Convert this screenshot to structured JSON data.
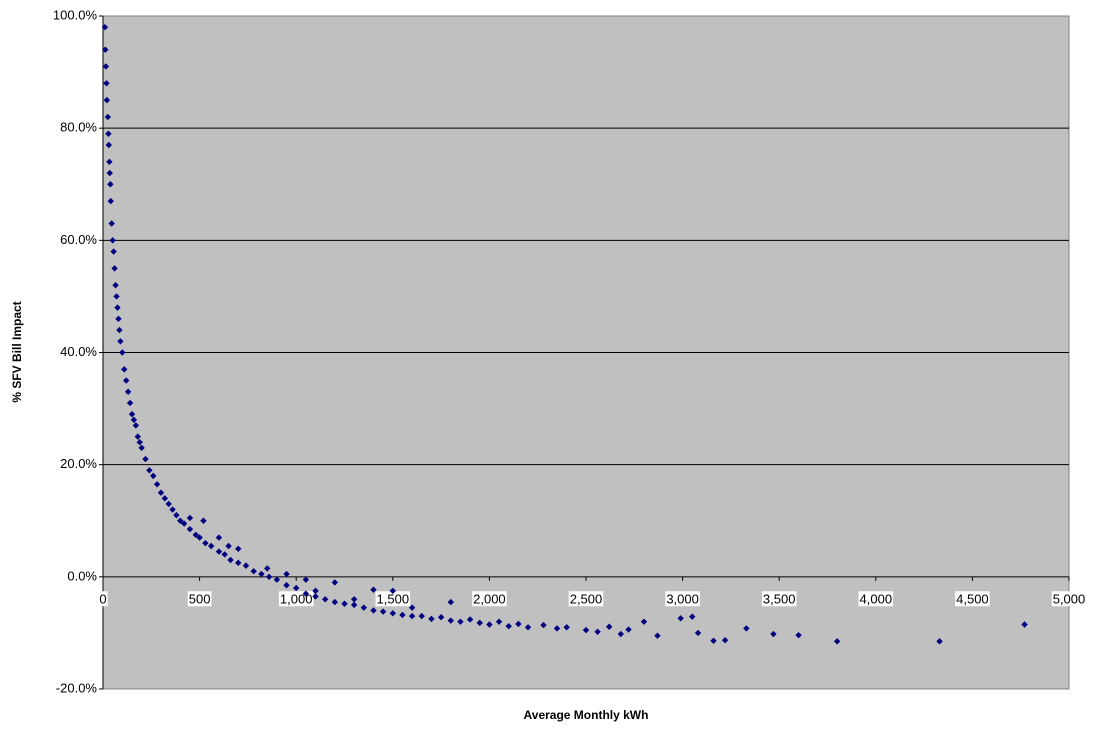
{
  "chart_data": {
    "type": "scatter",
    "x_label": "Average Monthly kWh",
    "y_label": "% SFV Bill Impact",
    "color": "#000080",
    "grid": true,
    "xlim": [
      0,
      5000
    ],
    "xticks": [
      0,
      500,
      {
        "value": 1000,
        "label": "1,000"
      },
      {
        "value": 1500,
        "label": "1,500"
      },
      {
        "value": 2000,
        "label": "2,000"
      },
      {
        "value": 2500,
        "label": "2,500"
      },
      {
        "value": 3000,
        "label": "3,000"
      },
      {
        "value": 3500,
        "label": "3,500"
      },
      {
        "value": 4000,
        "label": "4,000"
      },
      {
        "value": 4500,
        "label": "4,500"
      },
      {
        "value": 5000,
        "label": "5,000"
      }
    ],
    "ylim": [
      -20,
      100
    ],
    "yticks": [
      {
        "value": -20,
        "label": "-20.0%"
      },
      {
        "value": 0,
        "label": "0.0%"
      },
      {
        "value": 20,
        "label": "20.0%"
      },
      {
        "value": 40,
        "label": "40.0%"
      },
      {
        "value": 60,
        "label": "60.0%"
      },
      {
        "value": 80,
        "label": "80.0%"
      },
      {
        "value": 100,
        "label": "100.0%"
      }
    ],
    "x": [
      10,
      12,
      15,
      18,
      20,
      25,
      28,
      30,
      33,
      35,
      38,
      40,
      45,
      50,
      55,
      60,
      65,
      70,
      75,
      80,
      85,
      90,
      100,
      110,
      120,
      130,
      140,
      150,
      160,
      170,
      180,
      190,
      200,
      220,
      240,
      260,
      280,
      300,
      320,
      340,
      360,
      380,
      400,
      420,
      450,
      480,
      500,
      530,
      560,
      600,
      630,
      660,
      700,
      740,
      780,
      820,
      860,
      900,
      950,
      1000,
      1050,
      1100,
      1150,
      1200,
      1250,
      1300,
      1350,
      1400,
      1450,
      1500,
      1550,
      1600,
      1650,
      1700,
      1750,
      1800,
      1850,
      1900,
      1950,
      2000,
      2050,
      2100,
      2150,
      2200,
      2280,
      2350,
      2400,
      2500,
      2560,
      2620,
      2680,
      2720,
      2800,
      2870,
      2990,
      3050,
      3080,
      3160,
      3220,
      3330,
      3470,
      3600,
      3800,
      4330,
      4770,
      520,
      600,
      700,
      1200,
      1500,
      1800,
      1050,
      1400,
      450,
      650,
      850,
      950,
      1100,
      1300,
      1600
    ],
    "values": [
      98,
      94,
      91,
      88,
      85,
      82,
      79,
      77,
      74,
      72,
      70,
      67,
      63,
      60,
      58,
      55,
      52,
      50,
      48,
      46,
      44,
      42,
      40,
      37,
      35,
      33,
      31,
      29,
      28,
      27,
      25,
      24,
      23,
      21,
      19,
      18,
      16.5,
      15,
      14,
      13,
      12,
      11,
      10,
      9.5,
      8.5,
      7.5,
      7,
      6,
      5.5,
      4.5,
      4,
      3,
      2.5,
      2,
      1,
      0.5,
      0,
      -0.5,
      -1.5,
      -2,
      -3,
      -3.5,
      -4,
      -4.5,
      -4.8,
      -5,
      -5.5,
      -6,
      -6.2,
      -6.5,
      -6.8,
      -7,
      -7,
      -7.5,
      -7.2,
      -7.8,
      -8,
      -7.6,
      -8.2,
      -8.5,
      -8,
      -8.8,
      -8.4,
      -9,
      -8.6,
      -9.2,
      -9,
      -9.5,
      -9.8,
      -8.9,
      -10.2,
      -9.4,
      -8,
      -10.5,
      -7.4,
      -7.1,
      -10,
      -11.4,
      -11.3,
      -9.2,
      -10.2,
      -10.4,
      -11.5,
      -11.5,
      -8.5,
      10,
      7,
      5,
      -1,
      -2.5,
      -4.5,
      -0.5,
      -2.3,
      10.5,
      5.5,
      1.5,
      0.5,
      -2.5,
      -4,
      -5.5
    ]
  }
}
